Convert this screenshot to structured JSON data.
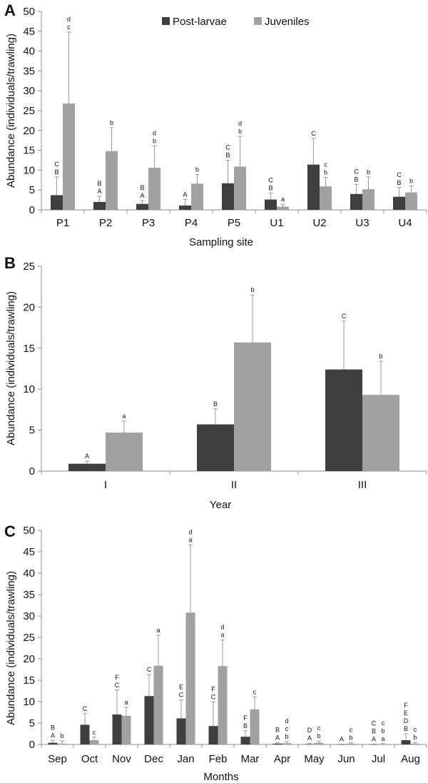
{
  "legend": {
    "series": [
      {
        "name": "Post-larvae",
        "color": "#3f3f3f"
      },
      {
        "name": "Juveniles",
        "color": "#a1a1a1"
      }
    ]
  },
  "chart_data": [
    {
      "panel": "A",
      "type": "bar",
      "xlabel": "Sampling site",
      "ylabel": "Abundance (individuals/trawling)",
      "ylim": [
        0,
        50
      ],
      "yticks": [
        0,
        5,
        10,
        15,
        20,
        25,
        30,
        35,
        40,
        45,
        50
      ],
      "categories": [
        "P1",
        "P2",
        "P3",
        "P4",
        "P5",
        "U1",
        "U2",
        "U3",
        "U4"
      ],
      "series": [
        {
          "name": "Post-larvae",
          "values": [
            3.7,
            2.0,
            1.5,
            1.1,
            6.7,
            2.6,
            11.4,
            4.0,
            3.3
          ],
          "errors": [
            4.6,
            1.4,
            0.8,
            1.5,
            5.8,
            1.6,
            6.6,
            2.4,
            2.3
          ],
          "letters": [
            [
              "C",
              "B"
            ],
            [
              "B",
              "A"
            ],
            [
              "B",
              "A"
            ],
            [
              "A"
            ],
            [
              "C",
              "B"
            ],
            [
              "C",
              "B"
            ],
            [
              "C"
            ],
            [
              "C",
              "B"
            ],
            [
              "C",
              "B"
            ]
          ]
        },
        {
          "name": "Juveniles",
          "values": [
            26.8,
            14.8,
            10.6,
            6.6,
            10.9,
            0.8,
            5.9,
            5.2,
            4.4
          ],
          "errors": [
            18.0,
            5.9,
            5.5,
            2.3,
            7.6,
            0.6,
            2.3,
            3.1,
            1.6
          ],
          "letters": [
            [
              "d",
              "c"
            ],
            [
              "b"
            ],
            [
              "d",
              "b"
            ],
            [
              "b"
            ],
            [
              "d",
              "b"
            ],
            [
              "a"
            ],
            [
              "c",
              "b"
            ],
            [
              "b"
            ],
            [
              "b"
            ]
          ]
        }
      ]
    },
    {
      "panel": "B",
      "type": "bar",
      "xlabel": "Year",
      "ylabel": "Abundance (individuals/trawling)",
      "ylim": [
        0,
        25
      ],
      "yticks": [
        0,
        5,
        10,
        15,
        20,
        25
      ],
      "categories": [
        "I",
        "II",
        "III"
      ],
      "series": [
        {
          "name": "Post-larvae",
          "values": [
            0.9,
            5.7,
            12.4
          ],
          "errors": [
            0.3,
            1.9,
            5.9
          ],
          "letters": [
            [
              "A"
            ],
            [
              "B"
            ],
            [
              "C"
            ]
          ]
        },
        {
          "name": "Juveniles",
          "values": [
            4.7,
            15.7,
            9.3
          ],
          "errors": [
            1.4,
            5.8,
            4.1
          ],
          "letters": [
            [
              "a"
            ],
            [
              "b"
            ],
            [
              "b"
            ]
          ]
        }
      ]
    },
    {
      "panel": "C",
      "type": "bar",
      "xlabel": "Months",
      "ylabel": "Abundance (individuals/trawling)",
      "ylim": [
        0,
        50
      ],
      "yticks": [
        0,
        5,
        10,
        15,
        20,
        25,
        30,
        35,
        40,
        45,
        50
      ],
      "categories": [
        "Sep",
        "Oct",
        "Nov",
        "Dec",
        "Jan",
        "Feb",
        "Mar",
        "Apr",
        "May",
        "Jun",
        "Jul",
        "Aug"
      ],
      "series": [
        {
          "name": "Post-larvae",
          "values": [
            0.4,
            4.6,
            7.0,
            11.3,
            6.1,
            4.3,
            1.8,
            0.2,
            0.1,
            0.05,
            0.05,
            1.0
          ],
          "errors": [
            0.5,
            2.6,
            5.7,
            5.0,
            4.3,
            5.6,
            1.4,
            0.2,
            0.2,
            0.05,
            0.05,
            1.5
          ],
          "letters": [
            [
              "B",
              "A"
            ],
            [
              "C"
            ],
            [
              "F",
              "C"
            ],
            [
              "C"
            ],
            [
              "E",
              "C"
            ],
            [
              "F",
              "C"
            ],
            [
              "F",
              "B"
            ],
            [
              "B",
              "A"
            ],
            [
              "D",
              "A"
            ],
            [
              "A"
            ],
            [
              "C",
              "B",
              "A"
            ],
            [
              "F",
              "E",
              "D",
              "B"
            ]
          ]
        },
        {
          "name": "Juveniles",
          "values": [
            0.2,
            1.0,
            6.7,
            18.4,
            30.8,
            18.3,
            8.2,
            0.3,
            0.4,
            0.2,
            0.1,
            0.2
          ],
          "errors": [
            0.6,
            0.7,
            2.0,
            7.1,
            15.8,
            6.1,
            2.9,
            0.4,
            0.4,
            0.2,
            0.1,
            0.3
          ],
          "letters": [
            [
              "b"
            ],
            [
              "c"
            ],
            [
              "a"
            ],
            [
              "a"
            ],
            [
              "d",
              "a"
            ],
            [
              "d",
              "a"
            ],
            [
              "c"
            ],
            [
              "d",
              "c",
              "b"
            ],
            [
              "c",
              "b"
            ],
            [
              "c",
              "b"
            ],
            [
              "c",
              "b",
              "a"
            ],
            [
              "c",
              "b"
            ]
          ]
        }
      ]
    }
  ]
}
